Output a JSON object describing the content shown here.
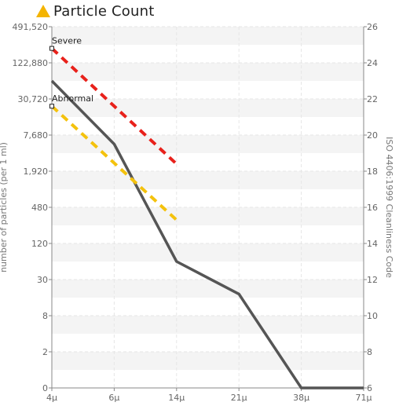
{
  "header": {
    "title": "Particle Count",
    "icon": "warning-triangle-icon",
    "icon_color": "#f4b400"
  },
  "chart_data": {
    "type": "line",
    "title": "Particle Count",
    "ylabel": "number of particles (per 1 ml)",
    "y2label": "ISO 4406:1999 Cleanliness Code",
    "x_categories": [
      "4μ",
      "6μ",
      "14μ",
      "21μ",
      "38μ",
      "71μ"
    ],
    "y_ticks": [
      "491,520",
      "122,880",
      "30,720",
      "7,680",
      "1,920",
      "480",
      "120",
      "30",
      "8",
      "2",
      "0"
    ],
    "y2_ticks": [
      "26",
      "24",
      "22",
      "20",
      "18",
      "16",
      "14",
      "12",
      "10",
      "8",
      "6"
    ],
    "y2lim": [
      6,
      26
    ],
    "series": [
      {
        "name": "",
        "color": "#555555",
        "style": "solid",
        "points": [
          {
            "x": "4μ",
            "code": 23.0
          },
          {
            "x": "6μ",
            "code": 19.5
          },
          {
            "x": "14μ",
            "code": 13.0
          },
          {
            "x": "21μ",
            "code": 11.2
          },
          {
            "x": "38μ",
            "code": 6.0
          },
          {
            "x": "71μ",
            "code": 6.0
          }
        ]
      },
      {
        "name": "Severe",
        "color": "#e8211b",
        "style": "dashed",
        "points": [
          {
            "x": "4μ",
            "code": 24.8
          },
          {
            "x": "14μ",
            "code": 18.4
          }
        ]
      },
      {
        "name": "Abnormal",
        "color": "#f4c20d",
        "style": "dashed",
        "points": [
          {
            "x": "4μ",
            "code": 21.6
          },
          {
            "x": "14μ",
            "code": 15.3
          }
        ]
      }
    ],
    "annotations": [
      {
        "text": "Severe",
        "x": "4μ",
        "code": 24.8
      },
      {
        "text": "Abnormal",
        "x": "4μ",
        "code": 21.6
      }
    ],
    "grid": true
  }
}
